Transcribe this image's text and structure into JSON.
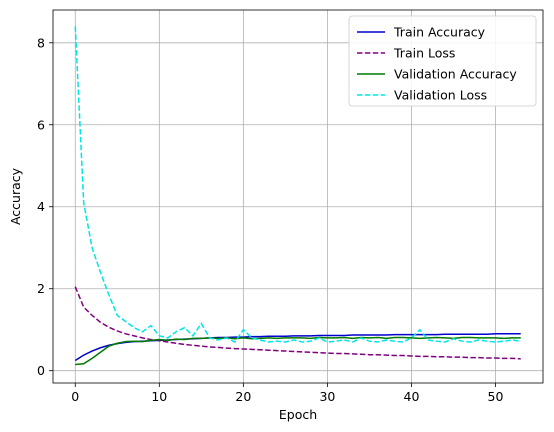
{
  "chart_data": {
    "type": "line",
    "title": "",
    "xlabel": "Epoch",
    "ylabel": "Accuracy",
    "xlim": [
      -2.65,
      55.65
    ],
    "ylim": [
      -0.3,
      8.8
    ],
    "xticks": [
      0,
      10,
      20,
      30,
      40,
      50
    ],
    "yticks": [
      0,
      2,
      4,
      6,
      8
    ],
    "grid": true,
    "legend_position": "top-right",
    "x": [
      0,
      1,
      2,
      3,
      4,
      5,
      6,
      7,
      8,
      9,
      10,
      11,
      12,
      13,
      14,
      15,
      16,
      17,
      18,
      19,
      20,
      21,
      22,
      23,
      24,
      25,
      26,
      27,
      28,
      29,
      30,
      31,
      32,
      33,
      34,
      35,
      36,
      37,
      38,
      39,
      40,
      41,
      42,
      43,
      44,
      45,
      46,
      47,
      48,
      49,
      50,
      51,
      52,
      53
    ],
    "series": [
      {
        "name": "Train Accuracy",
        "color": "#0000cc",
        "dash": "solid",
        "values": [
          0.25,
          0.38,
          0.48,
          0.56,
          0.62,
          0.66,
          0.69,
          0.71,
          0.72,
          0.73,
          0.74,
          0.75,
          0.76,
          0.77,
          0.78,
          0.79,
          0.8,
          0.81,
          0.81,
          0.82,
          0.82,
          0.83,
          0.83,
          0.84,
          0.84,
          0.84,
          0.85,
          0.85,
          0.85,
          0.86,
          0.86,
          0.86,
          0.86,
          0.87,
          0.87,
          0.87,
          0.87,
          0.87,
          0.88,
          0.88,
          0.88,
          0.88,
          0.88,
          0.88,
          0.89,
          0.89,
          0.89,
          0.89,
          0.89,
          0.89,
          0.9,
          0.9,
          0.9,
          0.9
        ]
      },
      {
        "name": "Train Loss",
        "color": "#800080",
        "dash": "dashed",
        "values": [
          2.05,
          1.55,
          1.35,
          1.18,
          1.06,
          0.97,
          0.9,
          0.85,
          0.8,
          0.76,
          0.73,
          0.7,
          0.67,
          0.64,
          0.62,
          0.6,
          0.58,
          0.57,
          0.55,
          0.54,
          0.53,
          0.52,
          0.51,
          0.5,
          0.49,
          0.48,
          0.47,
          0.46,
          0.45,
          0.44,
          0.43,
          0.42,
          0.42,
          0.41,
          0.4,
          0.39,
          0.39,
          0.38,
          0.37,
          0.37,
          0.36,
          0.35,
          0.35,
          0.34,
          0.34,
          0.33,
          0.33,
          0.32,
          0.32,
          0.31,
          0.31,
          0.3,
          0.3,
          0.29
        ]
      },
      {
        "name": "Validation Accuracy",
        "color": "#007a00",
        "dash": "solid",
        "values": [
          0.15,
          0.17,
          0.3,
          0.45,
          0.6,
          0.67,
          0.71,
          0.72,
          0.71,
          0.74,
          0.76,
          0.74,
          0.77,
          0.76,
          0.79,
          0.79,
          0.8,
          0.79,
          0.8,
          0.78,
          0.8,
          0.78,
          0.79,
          0.8,
          0.79,
          0.8,
          0.8,
          0.8,
          0.79,
          0.81,
          0.8,
          0.8,
          0.81,
          0.79,
          0.81,
          0.8,
          0.81,
          0.79,
          0.81,
          0.81,
          0.8,
          0.79,
          0.8,
          0.81,
          0.8,
          0.79,
          0.81,
          0.81,
          0.8,
          0.8,
          0.8,
          0.79,
          0.8,
          0.8
        ]
      },
      {
        "name": "Validation Loss",
        "color": "#00e5e5",
        "dash": "dashed",
        "values": [
          8.4,
          4.1,
          3.0,
          2.4,
          1.85,
          1.35,
          1.2,
          1.05,
          0.95,
          1.1,
          0.85,
          0.8,
          0.95,
          1.05,
          0.85,
          1.15,
          0.8,
          0.75,
          0.8,
          0.7,
          1.0,
          0.8,
          0.75,
          0.7,
          0.72,
          0.7,
          0.75,
          0.7,
          0.72,
          0.8,
          0.7,
          0.72,
          0.75,
          0.7,
          0.8,
          0.72,
          0.7,
          0.75,
          0.72,
          0.7,
          0.8,
          1.0,
          0.75,
          0.72,
          0.7,
          0.78,
          0.72,
          0.7,
          0.75,
          0.72,
          0.7,
          0.72,
          0.75,
          0.72
        ]
      }
    ]
  }
}
